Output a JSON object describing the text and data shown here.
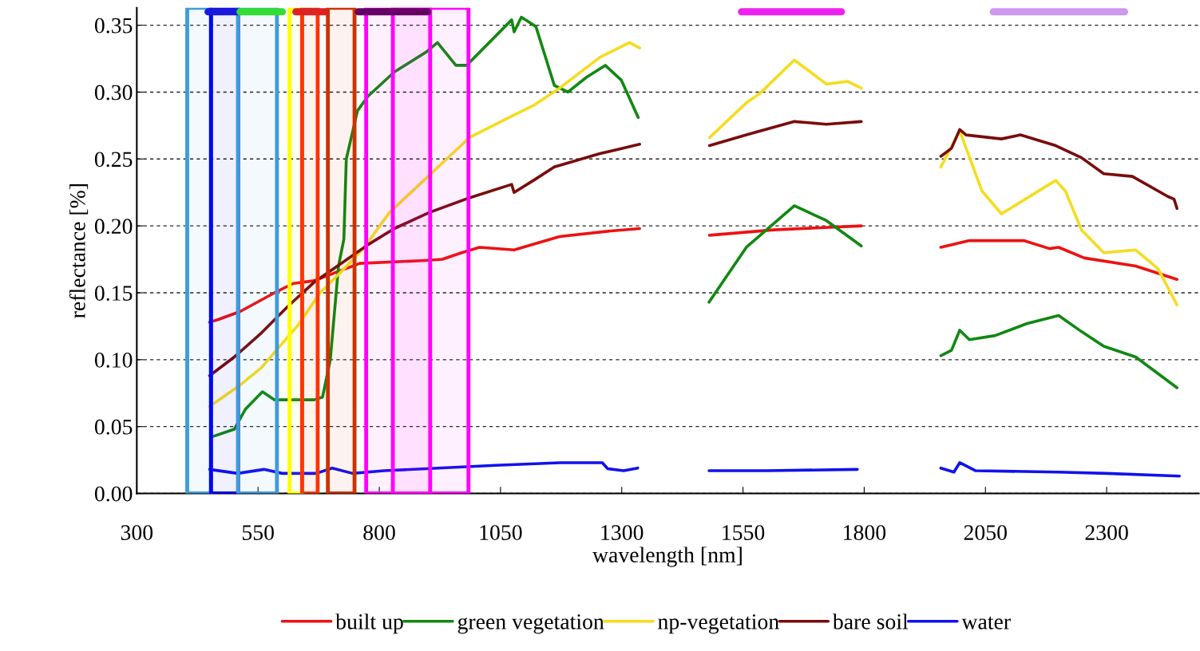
{
  "chart_data": {
    "type": "line",
    "xlabel": "wavelength [nm]",
    "ylabel": "reflectance [%]",
    "xlim": [
      300,
      2490
    ],
    "xticks": [
      300,
      550,
      800,
      1050,
      1300,
      1550,
      1800,
      2050,
      2300
    ],
    "ylim": [
      0,
      0.363
    ],
    "yticks": [
      {
        "value": 0,
        "label": "0.00"
      },
      0.05,
      {
        "value": 0.1,
        "label": "0.10"
      },
      0.15,
      {
        "value": 0.2,
        "label": "0.20"
      },
      0.25,
      {
        "value": 0.3,
        "label": "0.30"
      },
      0.35
    ],
    "grid": "y",
    "legend": "bottom",
    "line_style": "solid",
    "marker": "none",
    "bands": [
      {
        "axis": "x",
        "from": 404,
        "to": 453,
        "color": "#3f9bdc"
      },
      {
        "axis": "x",
        "from": 453,
        "to": 509,
        "color": "#0000ff"
      },
      {
        "axis": "x",
        "from": 509,
        "to": 589,
        "color": "#3f9bdc"
      },
      {
        "axis": "x",
        "from": 615,
        "to": 641,
        "color": "#ffff00"
      },
      {
        "axis": "x",
        "from": 641,
        "to": 673,
        "color": "#ff3300"
      },
      {
        "axis": "x",
        "from": 694,
        "to": 749,
        "color": "#cc3300"
      },
      {
        "axis": "x",
        "from": 773,
        "to": 905,
        "color": "#ff00ff"
      },
      {
        "axis": "x",
        "from": 828,
        "to": 984,
        "color": "#ff00ff"
      }
    ],
    "series": [
      {
        "name": "built up",
        "color": "#ee1111",
        "x": [
          450,
          468,
          513,
          584,
          623,
          666,
          716,
          760,
          887,
          930,
          970,
          1007,
          1078,
          1172,
          1271,
          1337,
          1400,
          1481,
          1613,
          1794,
          1900,
          1958,
          2017,
          2129,
          2182,
          2201,
          2254,
          2360,
          2445
        ],
        "values": [
          0.128,
          0.13,
          0.136,
          0.15,
          0.157,
          0.159,
          0.166,
          0.172,
          0.174,
          0.175,
          0.18,
          0.184,
          0.182,
          0.192,
          0.196,
          0.198,
          null,
          0.193,
          0.197,
          0.2,
          null,
          0.184,
          0.189,
          0.189,
          0.183,
          0.184,
          0.176,
          0.17,
          0.16
        ]
      },
      {
        "name": "green vegetation",
        "color": "#118811",
        "x": [
          452,
          501,
          524,
          559,
          584,
          666,
          683,
          699,
          716,
          727,
          732,
          755,
          777,
          831,
          897,
          920,
          958,
          980,
          1073,
          1078,
          1093,
          1123,
          1161,
          1189,
          1227,
          1266,
          1299,
          1334,
          1400,
          1480,
          1557,
          1656,
          1722,
          1794,
          1900,
          1958,
          1980,
          1997,
          2017,
          2070,
          2136,
          2201,
          2248,
          2294,
          2360,
          2445
        ],
        "values": [
          0.042,
          0.048,
          0.063,
          0.076,
          0.07,
          0.07,
          0.072,
          0.1,
          0.17,
          0.19,
          0.25,
          0.286,
          0.297,
          0.315,
          0.33,
          0.337,
          0.32,
          0.32,
          0.354,
          0.345,
          0.356,
          0.349,
          0.305,
          0.3,
          0.311,
          0.32,
          0.309,
          0.281,
          null,
          0.143,
          0.184,
          0.215,
          0.204,
          0.185,
          null,
          0.103,
          0.107,
          0.122,
          0.115,
          0.118,
          0.127,
          0.133,
          0.121,
          0.11,
          0.102,
          0.079
        ]
      },
      {
        "name": "np-vegetation",
        "color": "#f5dc1e",
        "x": [
          450,
          513,
          557,
          590,
          633,
          678,
          722,
          765,
          821,
          986,
          1073,
          1118,
          1172,
          1255,
          1316,
          1337,
          1400,
          1481,
          1557,
          1585,
          1656,
          1722,
          1766,
          1794,
          1900,
          1958,
          1997,
          2043,
          2083,
          2195,
          2215,
          2248,
          2294,
          2360,
          2406,
          2445
        ],
        "values": [
          0.065,
          0.081,
          0.094,
          0.108,
          0.126,
          0.15,
          0.166,
          0.182,
          0.21,
          0.266,
          0.282,
          0.29,
          0.303,
          0.326,
          0.337,
          0.333,
          null,
          0.266,
          0.292,
          0.299,
          0.324,
          0.306,
          0.308,
          0.303,
          null,
          0.244,
          0.271,
          0.226,
          0.209,
          0.234,
          0.226,
          0.197,
          0.18,
          0.182,
          0.168,
          0.141
        ]
      },
      {
        "name": "bare soil",
        "color": "#7a0c0c",
        "x": [
          450,
          501,
          557,
          612,
          666,
          722,
          777,
          831,
          903,
          986,
          1073,
          1078,
          1118,
          1161,
          1255,
          1337,
          1400,
          1481,
          1557,
          1656,
          1722,
          1794,
          1900,
          1958,
          1980,
          1997,
          2010,
          2083,
          2122,
          2195,
          2248,
          2294,
          2353,
          2426,
          2439,
          2445
        ],
        "values": [
          0.088,
          0.102,
          0.12,
          0.14,
          0.158,
          0.172,
          0.186,
          0.198,
          0.21,
          0.221,
          0.231,
          0.225,
          0.234,
          0.244,
          0.254,
          0.261,
          null,
          0.26,
          0.268,
          0.278,
          0.276,
          0.278,
          null,
          0.252,
          0.258,
          0.272,
          0.268,
          0.265,
          0.268,
          0.26,
          0.251,
          0.239,
          0.237,
          0.222,
          0.22,
          0.213
        ]
      },
      {
        "name": "water",
        "color": "#1111ee",
        "x": [
          450,
          508,
          562,
          600,
          670,
          703,
          745,
          810,
          1040,
          1173,
          1260,
          1271,
          1304,
          1333,
          1400,
          1480,
          1600,
          1786,
          1900,
          1958,
          1985,
          1997,
          2030,
          2200,
          2300,
          2450
        ],
        "values": [
          0.018,
          0.015,
          0.018,
          0.015,
          0.015,
          0.019,
          0.015,
          0.017,
          0.021,
          0.023,
          0.023,
          0.0185,
          0.017,
          0.019,
          null,
          0.017,
          0.017,
          0.018,
          null,
          0.019,
          0.016,
          0.023,
          0.017,
          0.016,
          0.015,
          0.013
        ]
      },
      {
        "color": "#1a1adc",
        "x": [
          447,
          508
        ],
        "values": [
          0.36,
          0.36
        ]
      },
      {
        "color": "#33dd33",
        "x": [
          513,
          600
        ],
        "values": [
          0.36,
          0.36
        ]
      },
      {
        "color": "#dd2222",
        "x": [
          628,
          689
        ],
        "values": [
          0.36,
          0.36
        ]
      },
      {
        "color": "#660066",
        "x": [
          757,
          900
        ],
        "values": [
          0.36,
          0.36
        ]
      },
      {
        "color": "#ee22ee",
        "x": [
          1547,
          1753
        ],
        "values": [
          0.36,
          0.36
        ]
      },
      {
        "color": "#cc99ee",
        "x": [
          2066,
          2337
        ],
        "values": [
          0.36,
          0.36
        ]
      }
    ]
  }
}
